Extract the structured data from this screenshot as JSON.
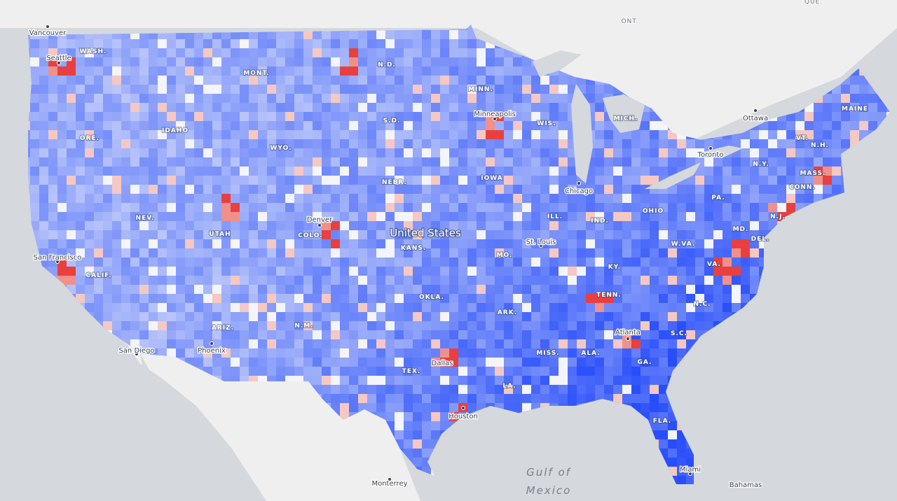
{
  "map": {
    "country": "United States",
    "states": [
      "WASH.",
      "MONT.",
      "N.D.",
      "MINN.",
      "MAINE",
      "MICH.",
      "WIS.",
      "S.D.",
      "IDAHO",
      "ORE.",
      "WYO.",
      "NEBR.",
      "IOWA",
      "VT.",
      "N.H.",
      "N.Y.",
      "MASS.",
      "CONN.",
      "PA.",
      "N.J.",
      "NEV.",
      "UTAH",
      "COLO.",
      "KANS.",
      "ILL.",
      "IND.",
      "OHIO",
      "MD.",
      "DEL.",
      "W.VA.",
      "VA.",
      "MO.",
      "KY.",
      "CALIF.",
      "OKLA.",
      "TENN.",
      "ARK.",
      "N.C.",
      "N.M.",
      "ARIZ.",
      "S.C.",
      "MISS.",
      "ALA.",
      "GA.",
      "TEX.",
      "LA.",
      "FLA."
    ],
    "provinces": [
      "ONT.",
      "QUE."
    ],
    "cities": [
      "Vancouver",
      "Seattle",
      "Minneapolis",
      "Ottawa",
      "Toronto",
      "Chicago",
      "Denver",
      "St. Louis",
      "San Francisco",
      "Atlanta",
      "Phoenix",
      "San Diego",
      "Dallas",
      "Houston",
      "Miami",
      "Monterrey"
    ],
    "places": [
      "Bahamas"
    ],
    "water": {
      "lines": [
        "Gulf of",
        "Mexico"
      ]
    }
  }
}
